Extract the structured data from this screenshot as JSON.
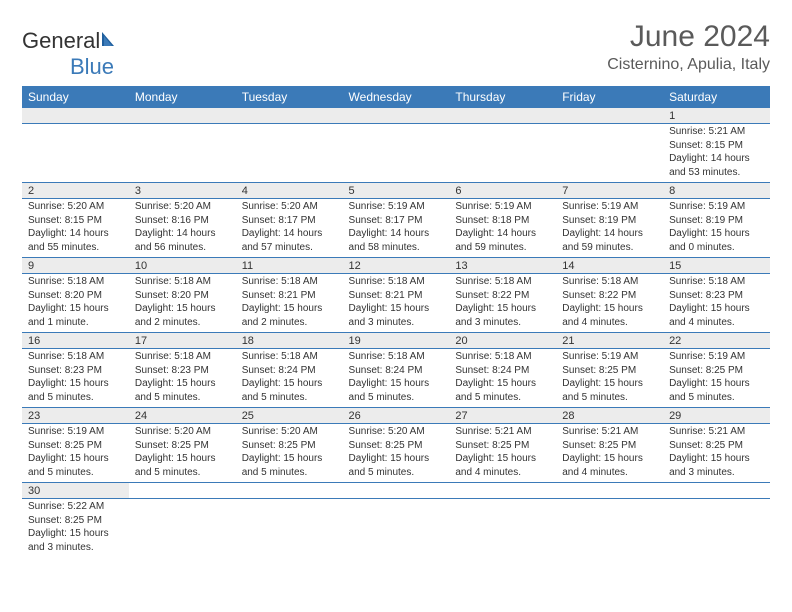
{
  "brand": {
    "general": "General",
    "blue": "Blue"
  },
  "title": "June 2024",
  "location": "Cisternino, Apulia, Italy",
  "colors": {
    "header_bg": "#3b7ab8",
    "header_text": "#ffffff",
    "daynum_bg": "#ececec",
    "border": "#3b7ab8",
    "text": "#333333",
    "title_text": "#5a5a5a"
  },
  "weekdays": [
    "Sunday",
    "Monday",
    "Tuesday",
    "Wednesday",
    "Thursday",
    "Friday",
    "Saturday"
  ],
  "weeks": [
    [
      null,
      null,
      null,
      null,
      null,
      null,
      {
        "day": "1",
        "sunrise": "Sunrise: 5:21 AM",
        "sunset": "Sunset: 8:15 PM",
        "daylight1": "Daylight: 14 hours",
        "daylight2": "and 53 minutes."
      }
    ],
    [
      {
        "day": "2",
        "sunrise": "Sunrise: 5:20 AM",
        "sunset": "Sunset: 8:15 PM",
        "daylight1": "Daylight: 14 hours",
        "daylight2": "and 55 minutes."
      },
      {
        "day": "3",
        "sunrise": "Sunrise: 5:20 AM",
        "sunset": "Sunset: 8:16 PM",
        "daylight1": "Daylight: 14 hours",
        "daylight2": "and 56 minutes."
      },
      {
        "day": "4",
        "sunrise": "Sunrise: 5:20 AM",
        "sunset": "Sunset: 8:17 PM",
        "daylight1": "Daylight: 14 hours",
        "daylight2": "and 57 minutes."
      },
      {
        "day": "5",
        "sunrise": "Sunrise: 5:19 AM",
        "sunset": "Sunset: 8:17 PM",
        "daylight1": "Daylight: 14 hours",
        "daylight2": "and 58 minutes."
      },
      {
        "day": "6",
        "sunrise": "Sunrise: 5:19 AM",
        "sunset": "Sunset: 8:18 PM",
        "daylight1": "Daylight: 14 hours",
        "daylight2": "and 59 minutes."
      },
      {
        "day": "7",
        "sunrise": "Sunrise: 5:19 AM",
        "sunset": "Sunset: 8:19 PM",
        "daylight1": "Daylight: 14 hours",
        "daylight2": "and 59 minutes."
      },
      {
        "day": "8",
        "sunrise": "Sunrise: 5:19 AM",
        "sunset": "Sunset: 8:19 PM",
        "daylight1": "Daylight: 15 hours",
        "daylight2": "and 0 minutes."
      }
    ],
    [
      {
        "day": "9",
        "sunrise": "Sunrise: 5:18 AM",
        "sunset": "Sunset: 8:20 PM",
        "daylight1": "Daylight: 15 hours",
        "daylight2": "and 1 minute."
      },
      {
        "day": "10",
        "sunrise": "Sunrise: 5:18 AM",
        "sunset": "Sunset: 8:20 PM",
        "daylight1": "Daylight: 15 hours",
        "daylight2": "and 2 minutes."
      },
      {
        "day": "11",
        "sunrise": "Sunrise: 5:18 AM",
        "sunset": "Sunset: 8:21 PM",
        "daylight1": "Daylight: 15 hours",
        "daylight2": "and 2 minutes."
      },
      {
        "day": "12",
        "sunrise": "Sunrise: 5:18 AM",
        "sunset": "Sunset: 8:21 PM",
        "daylight1": "Daylight: 15 hours",
        "daylight2": "and 3 minutes."
      },
      {
        "day": "13",
        "sunrise": "Sunrise: 5:18 AM",
        "sunset": "Sunset: 8:22 PM",
        "daylight1": "Daylight: 15 hours",
        "daylight2": "and 3 minutes."
      },
      {
        "day": "14",
        "sunrise": "Sunrise: 5:18 AM",
        "sunset": "Sunset: 8:22 PM",
        "daylight1": "Daylight: 15 hours",
        "daylight2": "and 4 minutes."
      },
      {
        "day": "15",
        "sunrise": "Sunrise: 5:18 AM",
        "sunset": "Sunset: 8:23 PM",
        "daylight1": "Daylight: 15 hours",
        "daylight2": "and 4 minutes."
      }
    ],
    [
      {
        "day": "16",
        "sunrise": "Sunrise: 5:18 AM",
        "sunset": "Sunset: 8:23 PM",
        "daylight1": "Daylight: 15 hours",
        "daylight2": "and 5 minutes."
      },
      {
        "day": "17",
        "sunrise": "Sunrise: 5:18 AM",
        "sunset": "Sunset: 8:23 PM",
        "daylight1": "Daylight: 15 hours",
        "daylight2": "and 5 minutes."
      },
      {
        "day": "18",
        "sunrise": "Sunrise: 5:18 AM",
        "sunset": "Sunset: 8:24 PM",
        "daylight1": "Daylight: 15 hours",
        "daylight2": "and 5 minutes."
      },
      {
        "day": "19",
        "sunrise": "Sunrise: 5:18 AM",
        "sunset": "Sunset: 8:24 PM",
        "daylight1": "Daylight: 15 hours",
        "daylight2": "and 5 minutes."
      },
      {
        "day": "20",
        "sunrise": "Sunrise: 5:18 AM",
        "sunset": "Sunset: 8:24 PM",
        "daylight1": "Daylight: 15 hours",
        "daylight2": "and 5 minutes."
      },
      {
        "day": "21",
        "sunrise": "Sunrise: 5:19 AM",
        "sunset": "Sunset: 8:25 PM",
        "daylight1": "Daylight: 15 hours",
        "daylight2": "and 5 minutes."
      },
      {
        "day": "22",
        "sunrise": "Sunrise: 5:19 AM",
        "sunset": "Sunset: 8:25 PM",
        "daylight1": "Daylight: 15 hours",
        "daylight2": "and 5 minutes."
      }
    ],
    [
      {
        "day": "23",
        "sunrise": "Sunrise: 5:19 AM",
        "sunset": "Sunset: 8:25 PM",
        "daylight1": "Daylight: 15 hours",
        "daylight2": "and 5 minutes."
      },
      {
        "day": "24",
        "sunrise": "Sunrise: 5:20 AM",
        "sunset": "Sunset: 8:25 PM",
        "daylight1": "Daylight: 15 hours",
        "daylight2": "and 5 minutes."
      },
      {
        "day": "25",
        "sunrise": "Sunrise: 5:20 AM",
        "sunset": "Sunset: 8:25 PM",
        "daylight1": "Daylight: 15 hours",
        "daylight2": "and 5 minutes."
      },
      {
        "day": "26",
        "sunrise": "Sunrise: 5:20 AM",
        "sunset": "Sunset: 8:25 PM",
        "daylight1": "Daylight: 15 hours",
        "daylight2": "and 5 minutes."
      },
      {
        "day": "27",
        "sunrise": "Sunrise: 5:21 AM",
        "sunset": "Sunset: 8:25 PM",
        "daylight1": "Daylight: 15 hours",
        "daylight2": "and 4 minutes."
      },
      {
        "day": "28",
        "sunrise": "Sunrise: 5:21 AM",
        "sunset": "Sunset: 8:25 PM",
        "daylight1": "Daylight: 15 hours",
        "daylight2": "and 4 minutes."
      },
      {
        "day": "29",
        "sunrise": "Sunrise: 5:21 AM",
        "sunset": "Sunset: 8:25 PM",
        "daylight1": "Daylight: 15 hours",
        "daylight2": "and 3 minutes."
      }
    ],
    [
      {
        "day": "30",
        "sunrise": "Sunrise: 5:22 AM",
        "sunset": "Sunset: 8:25 PM",
        "daylight1": "Daylight: 15 hours",
        "daylight2": "and 3 minutes."
      },
      null,
      null,
      null,
      null,
      null,
      null
    ]
  ]
}
